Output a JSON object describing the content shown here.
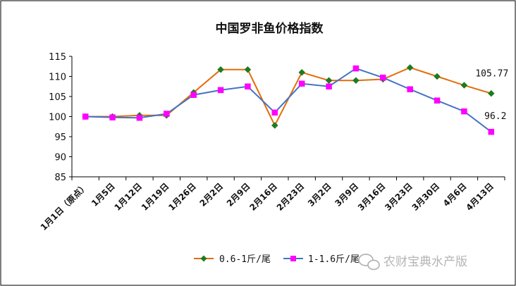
{
  "chart_data": {
    "type": "line",
    "title": "中国罗非鱼价格指数",
    "categories": [
      "1月1日（原点）",
      "1月5日",
      "1月12日",
      "1月19日",
      "1月26日",
      "2月2日",
      "2月9日",
      "2月16日",
      "2月23日",
      "3月2日",
      "3月9日",
      "3月16日",
      "3月23日",
      "3月30日",
      "4月6日",
      "4月13日"
    ],
    "ylim": [
      85,
      115
    ],
    "yticks": [
      85,
      90,
      95,
      100,
      105,
      110,
      115
    ],
    "grid": false,
    "legend_position": "bottom",
    "series": [
      {
        "name": "0.6-1斤/尾",
        "color": "#E46C0A",
        "marker": "diamond",
        "marker_color": "#1E7B1E",
        "values": [
          100,
          100,
          100.3,
          100.3,
          106,
          111.7,
          111.7,
          97.8,
          111,
          109,
          109,
          109.3,
          112.2,
          110,
          107.8,
          105.77
        ]
      },
      {
        "name": "1-1.6斤/尾",
        "color": "#4472C4",
        "marker": "square",
        "marker_color": "#FF00FF",
        "values": [
          100,
          99.8,
          99.7,
          100.7,
          105.4,
          106.6,
          107.5,
          101,
          108.2,
          107.5,
          112,
          109.7,
          106.8,
          104,
          101.3,
          96.2
        ]
      }
    ],
    "annotations": [
      "105.77",
      "96.2"
    ]
  },
  "watermark": {
    "text": "农财宝典水产版"
  }
}
